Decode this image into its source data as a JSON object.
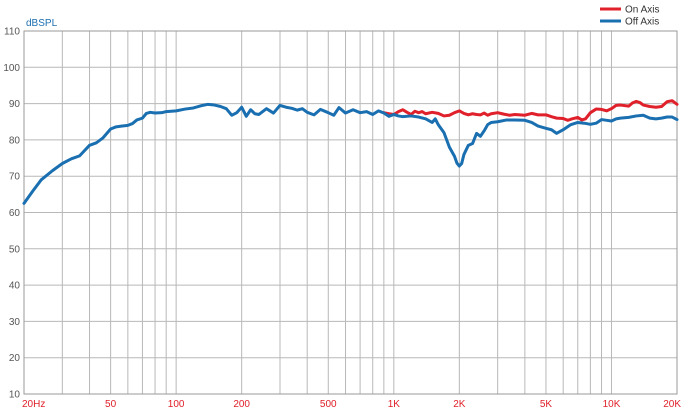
{
  "chart_data": {
    "type": "line",
    "ylabel": "dBSPL",
    "xscale": "log",
    "xlim": [
      20,
      20000
    ],
    "ylim": [
      10,
      110
    ],
    "grid": true,
    "legend_position": "top-right",
    "yticks": [
      {
        "value": 10,
        "label": "10"
      },
      {
        "value": 20,
        "label": "20"
      },
      {
        "value": 30,
        "label": "30"
      },
      {
        "value": 40,
        "label": "40"
      },
      {
        "value": 50,
        "label": "50"
      },
      {
        "value": 60,
        "label": "60"
      },
      {
        "value": 70,
        "label": "70"
      },
      {
        "value": 80,
        "label": "80"
      },
      {
        "value": 90,
        "label": "90"
      },
      {
        "value": 100,
        "label": "100"
      },
      {
        "value": 110,
        "label": "110"
      }
    ],
    "xticks": [
      {
        "value": 20,
        "label": "20Hz"
      },
      {
        "value": 50,
        "label": "50"
      },
      {
        "value": 100,
        "label": "100"
      },
      {
        "value": 200,
        "label": "200"
      },
      {
        "value": 500,
        "label": "500"
      },
      {
        "value": 1000,
        "label": "1K"
      },
      {
        "value": 2000,
        "label": "2K"
      },
      {
        "value": 5000,
        "label": "5K"
      },
      {
        "value": 10000,
        "label": "10K"
      },
      {
        "value": 20000,
        "label": "20K"
      }
    ],
    "series": [
      {
        "name": "On Axis",
        "color": "#e0202a",
        "points": [
          [
            900,
            87.5
          ],
          [
            950,
            87.2
          ],
          [
            1000,
            87.0
          ],
          [
            1050,
            87.8
          ],
          [
            1100,
            88.3
          ],
          [
            1150,
            87.6
          ],
          [
            1200,
            87.0
          ],
          [
            1250,
            87.9
          ],
          [
            1300,
            87.5
          ],
          [
            1350,
            87.8
          ],
          [
            1400,
            87.2
          ],
          [
            1500,
            87.6
          ],
          [
            1600,
            87.3
          ],
          [
            1700,
            86.6
          ],
          [
            1800,
            86.8
          ],
          [
            1900,
            87.5
          ],
          [
            2000,
            88.0
          ],
          [
            2100,
            87.3
          ],
          [
            2200,
            86.9
          ],
          [
            2300,
            87.2
          ],
          [
            2400,
            87.0
          ],
          [
            2500,
            86.9
          ],
          [
            2600,
            87.4
          ],
          [
            2700,
            86.8
          ],
          [
            2800,
            87.2
          ],
          [
            3000,
            87.5
          ],
          [
            3200,
            87.1
          ],
          [
            3400,
            86.8
          ],
          [
            3600,
            87.0
          ],
          [
            3800,
            86.9
          ],
          [
            4000,
            86.8
          ],
          [
            4300,
            87.3
          ],
          [
            4600,
            86.9
          ],
          [
            5000,
            86.9
          ],
          [
            5300,
            86.4
          ],
          [
            5600,
            86.0
          ],
          [
            6000,
            85.9
          ],
          [
            6300,
            85.4
          ],
          [
            6600,
            85.8
          ],
          [
            7000,
            86.2
          ],
          [
            7300,
            85.5
          ],
          [
            7600,
            85.8
          ],
          [
            8000,
            87.5
          ],
          [
            8500,
            88.5
          ],
          [
            9000,
            88.4
          ],
          [
            9500,
            88.0
          ],
          [
            10000,
            88.6
          ],
          [
            10500,
            89.5
          ],
          [
            11000,
            89.6
          ],
          [
            12000,
            89.3
          ],
          [
            12500,
            90.2
          ],
          [
            13000,
            90.6
          ],
          [
            13500,
            90.3
          ],
          [
            14000,
            89.6
          ],
          [
            15000,
            89.2
          ],
          [
            16000,
            89.0
          ],
          [
            17000,
            89.2
          ],
          [
            18000,
            90.5
          ],
          [
            19000,
            90.8
          ],
          [
            20000,
            89.8
          ]
        ]
      },
      {
        "name": "Off Axis",
        "color": "#1a6fb0",
        "points": [
          [
            20,
            62.5
          ],
          [
            22,
            66.0
          ],
          [
            24,
            69.0
          ],
          [
            27,
            71.5
          ],
          [
            30,
            73.5
          ],
          [
            33,
            74.8
          ],
          [
            36,
            75.6
          ],
          [
            40,
            78.5
          ],
          [
            43,
            79.2
          ],
          [
            46,
            80.5
          ],
          [
            50,
            83.0
          ],
          [
            53,
            83.6
          ],
          [
            56,
            83.8
          ],
          [
            60,
            84.0
          ],
          [
            63,
            84.5
          ],
          [
            66,
            85.5
          ],
          [
            70,
            86.0
          ],
          [
            73,
            87.3
          ],
          [
            76,
            87.6
          ],
          [
            80,
            87.4
          ],
          [
            86,
            87.5
          ],
          [
            90,
            87.8
          ],
          [
            100,
            88.0
          ],
          [
            110,
            88.5
          ],
          [
            120,
            88.8
          ],
          [
            130,
            89.4
          ],
          [
            140,
            89.8
          ],
          [
            150,
            89.6
          ],
          [
            160,
            89.2
          ],
          [
            170,
            88.6
          ],
          [
            180,
            86.8
          ],
          [
            190,
            87.5
          ],
          [
            200,
            89.0
          ],
          [
            210,
            86.5
          ],
          [
            220,
            88.3
          ],
          [
            230,
            87.2
          ],
          [
            240,
            87.0
          ],
          [
            260,
            88.6
          ],
          [
            280,
            87.4
          ],
          [
            300,
            89.5
          ],
          [
            320,
            89.0
          ],
          [
            340,
            88.7
          ],
          [
            360,
            88.2
          ],
          [
            380,
            88.6
          ],
          [
            400,
            87.6
          ],
          [
            430,
            86.9
          ],
          [
            460,
            88.4
          ],
          [
            500,
            87.5
          ],
          [
            530,
            86.8
          ],
          [
            560,
            88.9
          ],
          [
            600,
            87.4
          ],
          [
            650,
            88.3
          ],
          [
            700,
            87.5
          ],
          [
            750,
            87.8
          ],
          [
            800,
            87.0
          ],
          [
            850,
            88.0
          ],
          [
            900,
            87.4
          ],
          [
            950,
            86.5
          ],
          [
            1000,
            87.0
          ],
          [
            1050,
            86.6
          ],
          [
            1100,
            86.4
          ],
          [
            1200,
            86.6
          ],
          [
            1300,
            86.3
          ],
          [
            1400,
            85.8
          ],
          [
            1500,
            84.8
          ],
          [
            1550,
            85.8
          ],
          [
            1600,
            84.2
          ],
          [
            1700,
            82.0
          ],
          [
            1800,
            78.0
          ],
          [
            1900,
            75.5
          ],
          [
            1950,
            73.6
          ],
          [
            2000,
            72.8
          ],
          [
            2050,
            73.5
          ],
          [
            2100,
            76.0
          ],
          [
            2200,
            78.5
          ],
          [
            2300,
            79.0
          ],
          [
            2400,
            81.8
          ],
          [
            2500,
            81.0
          ],
          [
            2600,
            82.5
          ],
          [
            2700,
            84.2
          ],
          [
            2800,
            84.8
          ],
          [
            3000,
            85.0
          ],
          [
            3300,
            85.5
          ],
          [
            3600,
            85.5
          ],
          [
            4000,
            85.4
          ],
          [
            4300,
            84.8
          ],
          [
            4600,
            83.8
          ],
          [
            5000,
            83.2
          ],
          [
            5300,
            82.8
          ],
          [
            5600,
            81.8
          ],
          [
            6000,
            82.8
          ],
          [
            6500,
            84.2
          ],
          [
            7000,
            84.8
          ],
          [
            7500,
            84.6
          ],
          [
            8000,
            84.3
          ],
          [
            8500,
            84.6
          ],
          [
            9000,
            85.6
          ],
          [
            9500,
            85.4
          ],
          [
            10000,
            85.2
          ],
          [
            10500,
            85.8
          ],
          [
            11000,
            86.0
          ],
          [
            12000,
            86.2
          ],
          [
            13000,
            86.6
          ],
          [
            14000,
            86.8
          ],
          [
            15000,
            86.0
          ],
          [
            16000,
            85.8
          ],
          [
            17000,
            86.0
          ],
          [
            18000,
            86.3
          ],
          [
            19000,
            86.3
          ],
          [
            20000,
            85.6
          ]
        ]
      }
    ]
  }
}
